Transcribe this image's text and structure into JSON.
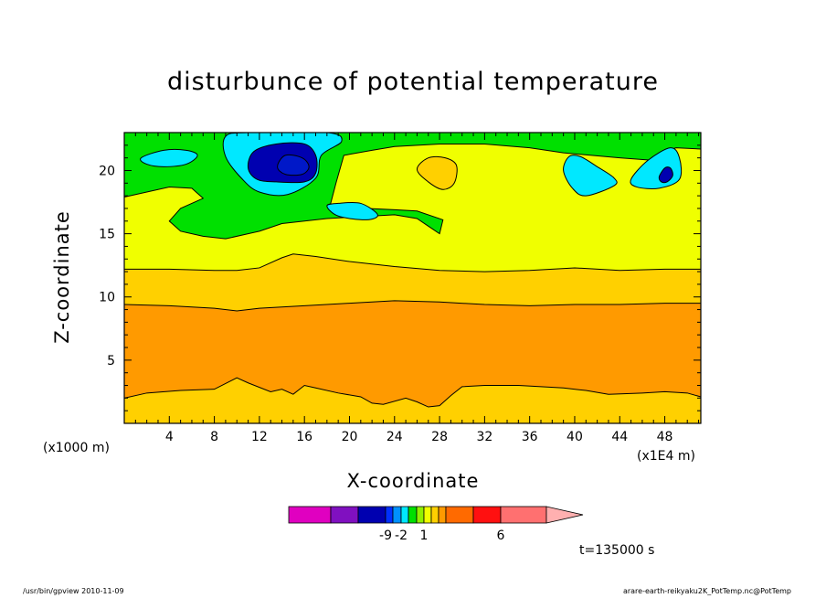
{
  "colors": {
    "magenta": "#e000c0",
    "purple": "#8010c0",
    "darkblue": "#0000b0",
    "blue": "#0030ff",
    "lightblue": "#0090ff",
    "cyan": "#00e8ff",
    "green": "#00e000",
    "lightgreen": "#90f000",
    "yellow": "#f0ff00",
    "gold": "#ffd000",
    "orange": "#ff9a00",
    "darkorange": "#ff6a00",
    "red": "#ff1010",
    "salmon": "#ff7070",
    "pink": "#ffb0b0",
    "navy": "#0018c8"
  },
  "chart_data": {
    "type": "heatmap",
    "title": "disturbunce of potential temperature",
    "xlabel": "X-coordinate",
    "ylabel": "Z-coordinate",
    "x_unit_left": "(x1000 m)",
    "x_unit_right": "(x1E4 m)",
    "time_label": "t=135000 s",
    "xlim": [
      0,
      51.2
    ],
    "ylim": [
      0,
      23
    ],
    "x_ticks": [
      4,
      8,
      12,
      16,
      20,
      24,
      28,
      32,
      36,
      40,
      44,
      48
    ],
    "y_ticks": [
      5,
      10,
      15,
      20
    ],
    "x_ticks_minor_step": 1,
    "y_ticks_minor_step": 1,
    "bands": [
      {
        "color": "gold",
        "bottom": [
          [
            0,
            0
          ],
          [
            51.2,
            0
          ]
        ],
        "top": [
          [
            0,
            2.0
          ],
          [
            2,
            2.4
          ],
          [
            5,
            2.6
          ],
          [
            8,
            2.7
          ],
          [
            10,
            3.6
          ],
          [
            11,
            3.2
          ],
          [
            13,
            2.5
          ],
          [
            14,
            2.7
          ],
          [
            15,
            2.3
          ],
          [
            16,
            3.0
          ],
          [
            17,
            2.8
          ],
          [
            19,
            2.4
          ],
          [
            21,
            2.1
          ],
          [
            22,
            1.6
          ],
          [
            23,
            1.5
          ],
          [
            25,
            2.0
          ],
          [
            26,
            1.7
          ],
          [
            27,
            1.3
          ],
          [
            28,
            1.4
          ],
          [
            29,
            2.2
          ],
          [
            30,
            2.9
          ],
          [
            32,
            3.0
          ],
          [
            35,
            3.0
          ],
          [
            37,
            2.9
          ],
          [
            39,
            2.8
          ],
          [
            41,
            2.6
          ],
          [
            43,
            2.3
          ],
          [
            46,
            2.4
          ],
          [
            48,
            2.5
          ],
          [
            50,
            2.4
          ],
          [
            51.2,
            2.1
          ]
        ]
      },
      {
        "color": "orange",
        "bottom": "prev",
        "top": [
          [
            0,
            9.4
          ],
          [
            4,
            9.3
          ],
          [
            8,
            9.1
          ],
          [
            10,
            8.9
          ],
          [
            12,
            9.1
          ],
          [
            16,
            9.3
          ],
          [
            20,
            9.5
          ],
          [
            22,
            9.6
          ],
          [
            24,
            9.7
          ],
          [
            28,
            9.6
          ],
          [
            32,
            9.4
          ],
          [
            36,
            9.3
          ],
          [
            40,
            9.4
          ],
          [
            44,
            9.4
          ],
          [
            48,
            9.5
          ],
          [
            51.2,
            9.5
          ]
        ]
      },
      {
        "color": "gold",
        "bottom": "prev",
        "top": [
          [
            0,
            12.2
          ],
          [
            4,
            12.2
          ],
          [
            8,
            12.1
          ],
          [
            10,
            12.1
          ],
          [
            12,
            12.3
          ],
          [
            14,
            13.1
          ],
          [
            15,
            13.4
          ],
          [
            17,
            13.2
          ],
          [
            20,
            12.8
          ],
          [
            24,
            12.4
          ],
          [
            28,
            12.1
          ],
          [
            32,
            12.0
          ],
          [
            36,
            12.1
          ],
          [
            40,
            12.3
          ],
          [
            44,
            12.1
          ],
          [
            48,
            12.2
          ],
          [
            51.2,
            12.2
          ]
        ]
      },
      {
        "color": "yellow",
        "bottom": "prev",
        "top": [
          [
            0,
            17.9
          ],
          [
            2,
            18.3
          ],
          [
            4,
            18.7
          ],
          [
            6,
            18.6
          ],
          [
            7,
            17.8
          ],
          [
            5,
            17.0
          ],
          [
            4,
            16.0
          ],
          [
            5,
            15.2
          ],
          [
            7,
            14.8
          ],
          [
            9,
            14.6
          ],
          [
            12,
            15.2
          ],
          [
            14,
            15.8
          ],
          [
            18,
            16.2
          ],
          [
            22,
            16.4
          ],
          [
            24,
            16.5
          ],
          [
            26,
            16.2
          ],
          [
            27,
            15.6
          ],
          [
            28,
            15.0
          ],
          [
            28.3,
            16.1
          ],
          [
            26,
            16.8
          ],
          [
            24,
            16.9
          ],
          [
            19,
            17.1
          ],
          [
            18.3,
            17.3
          ],
          [
            18.8,
            19.0
          ],
          [
            19.5,
            21.2
          ],
          [
            22,
            21.6
          ],
          [
            24,
            21.9
          ],
          [
            28,
            22.1
          ],
          [
            32,
            22.1
          ],
          [
            36,
            21.8
          ],
          [
            39,
            21.4
          ],
          [
            44,
            21.0
          ],
          [
            47,
            20.8
          ],
          [
            48,
            21.5
          ],
          [
            49,
            21.8
          ],
          [
            51.2,
            21.7
          ]
        ]
      },
      {
        "color": "green",
        "bottom": "prev",
        "top": [
          [
            0,
            23
          ],
          [
            51.2,
            23
          ]
        ]
      }
    ],
    "blobs": [
      {
        "color": "cyan",
        "points": [
          [
            1.5,
            21.0
          ],
          [
            3.5,
            21.6
          ],
          [
            5.5,
            21.6
          ],
          [
            6.5,
            21.2
          ],
          [
            5.5,
            20.5
          ],
          [
            3.5,
            20.3
          ],
          [
            2,
            20.5
          ]
        ]
      },
      {
        "color": "cyan",
        "points": [
          [
            9,
            22.7
          ],
          [
            11,
            23
          ],
          [
            18,
            23
          ],
          [
            19.3,
            22.3
          ],
          [
            17.5,
            21.2
          ],
          [
            17,
            19.4
          ],
          [
            14.5,
            18.1
          ],
          [
            12,
            18.3
          ],
          [
            10.5,
            19.3
          ],
          [
            9,
            21.1
          ]
        ]
      },
      {
        "color": "darkblue",
        "points": [
          [
            11,
            20.2
          ],
          [
            11.5,
            21.5
          ],
          [
            13.5,
            22.1
          ],
          [
            16,
            22.1
          ],
          [
            17,
            21.2
          ],
          [
            17,
            19.8
          ],
          [
            16,
            19.1
          ],
          [
            13.5,
            19.1
          ],
          [
            11.8,
            19.3
          ]
        ]
      },
      {
        "color": "navy",
        "points": [
          [
            13.6,
            20.3
          ],
          [
            14.3,
            21.2
          ],
          [
            15.8,
            21.0
          ],
          [
            16.4,
            20.3
          ],
          [
            15.8,
            19.7
          ],
          [
            14.3,
            19.7
          ]
        ]
      },
      {
        "color": "cyan",
        "points": [
          [
            18,
            17.2
          ],
          [
            19,
            16.4
          ],
          [
            21.5,
            16.1
          ],
          [
            22.5,
            16.5
          ],
          [
            21,
            17.4
          ],
          [
            19,
            17.4
          ]
        ]
      },
      {
        "color": "gold",
        "points": [
          [
            26,
            20.1
          ],
          [
            27,
            21.0
          ],
          [
            28.5,
            21.0
          ],
          [
            29.5,
            20.4
          ],
          [
            29.3,
            19.0
          ],
          [
            28.3,
            18.5
          ],
          [
            27,
            19.1
          ]
        ]
      },
      {
        "color": "cyan",
        "points": [
          [
            39,
            20.0
          ],
          [
            39.5,
            21.1
          ],
          [
            40.5,
            21.1
          ],
          [
            42,
            20.3
          ],
          [
            43.5,
            19.4
          ],
          [
            43.5,
            18.8
          ],
          [
            41,
            18.0
          ],
          [
            39.8,
            18.6
          ]
        ]
      },
      {
        "color": "cyan",
        "points": [
          [
            45,
            19.3
          ],
          [
            46.5,
            20.8
          ],
          [
            48.5,
            21.8
          ],
          [
            49.3,
            21.0
          ],
          [
            49.3,
            19.3
          ],
          [
            47.5,
            18.6
          ],
          [
            45.5,
            18.7
          ]
        ]
      },
      {
        "color": "darkblue",
        "points": [
          [
            47.5,
            19.5
          ],
          [
            48,
            20.2
          ],
          [
            48.5,
            20.2
          ],
          [
            48.7,
            19.6
          ],
          [
            48.2,
            19.1
          ],
          [
            47.7,
            19.1
          ]
        ]
      }
    ],
    "colorbar": {
      "segments": [
        "magenta",
        "purple",
        "darkblue",
        "blue",
        "lightblue",
        "cyan",
        "green",
        "lightgreen",
        "yellow",
        "gold",
        "orange",
        "darkorange",
        "red",
        "salmon"
      ],
      "tip": "pink",
      "labels": [
        {
          "text": "-9",
          "after_segment": 2
        },
        {
          "text": "-2",
          "after_segment": 4
        },
        {
          "text": "1",
          "after_segment": 7
        },
        {
          "text": "6",
          "after_segment": 12
        }
      ]
    }
  },
  "footer": {
    "left": "/usr/bin/gpview   2010-11-09",
    "right": "arare-earth-reikyaku2K_PotTemp.nc@PotTemp"
  }
}
